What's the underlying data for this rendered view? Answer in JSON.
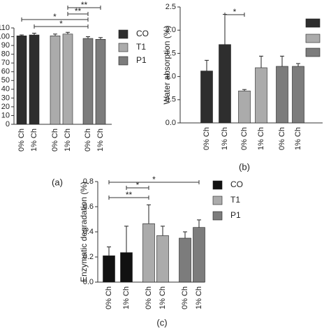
{
  "chart_data": [
    {
      "type": "bar",
      "label": "(a)",
      "categories": [
        "0% Ch",
        "1% Ch",
        "0% Ch",
        "1% Ch",
        "0% Ch",
        "1% Ch"
      ],
      "series": [
        {
          "name": "CO",
          "color": "#2e2e2e",
          "values": [
            101,
            102,
            null,
            null,
            null,
            null
          ],
          "errors": [
            1,
            2,
            null,
            null,
            null,
            null
          ]
        },
        {
          "name": "T1",
          "color": "#ababab",
          "values": [
            null,
            null,
            101,
            103,
            null,
            null
          ],
          "errors": [
            null,
            null,
            2,
            2,
            null,
            null
          ]
        },
        {
          "name": "P1",
          "color": "#7c7c7c",
          "values": [
            null,
            null,
            null,
            null,
            98,
            97
          ],
          "errors": [
            null,
            null,
            null,
            null,
            2,
            2
          ]
        }
      ],
      "ylim": [
        0,
        110
      ],
      "yticks": [
        0,
        10,
        20,
        30,
        40,
        50,
        60,
        70,
        80,
        90,
        100,
        110
      ],
      "annotations": [
        "**",
        "**",
        "*",
        "*"
      ]
    },
    {
      "type": "bar",
      "label": "(b)",
      "y_label": "Water absorption (%)",
      "categories": [
        "0% Ch",
        "1% Ch",
        "0% Ch",
        "1% Ch",
        "0% Ch",
        "1% Ch"
      ],
      "series": [
        {
          "color": "#2e2e2e",
          "values": [
            1.12,
            1.69,
            null,
            null,
            null,
            null
          ],
          "errors": [
            0.23,
            0.65,
            null,
            null,
            null,
            null
          ]
        },
        {
          "color": "#ababab",
          "values": [
            null,
            null,
            0.69,
            1.19,
            null,
            null
          ],
          "errors": [
            null,
            null,
            0.03,
            0.25,
            null,
            null
          ]
        },
        {
          "color": "#7c7c7c",
          "values": [
            null,
            null,
            null,
            null,
            1.22,
            1.22
          ],
          "errors": [
            null,
            null,
            null,
            null,
            0.22,
            0.06
          ]
        }
      ],
      "ylim": [
        0,
        2.5
      ],
      "yticks": [
        {
          "value": 0,
          "label": "0.0"
        },
        {
          "value": 0.5,
          "label": "0.5"
        },
        {
          "value": 1,
          "label": "1.0"
        },
        {
          "value": 1.5,
          "label": "1.5"
        },
        {
          "value": 2,
          "label": "2.0"
        },
        {
          "value": 2.5,
          "label": "2.5"
        }
      ],
      "annotations": [
        "*"
      ]
    },
    {
      "type": "bar",
      "label": "(c)",
      "y_label": "Enzymatic degradation (%)",
      "categories": [
        "0% Ch",
        "1% Ch",
        "0% Ch",
        "1% Ch",
        "0% Ch",
        "1% Ch"
      ],
      "series": [
        {
          "name": "CO",
          "color": "#111111",
          "values": [
            0.21,
            0.235,
            null,
            null,
            null,
            null
          ],
          "errors": [
            0.07,
            0.21,
            null,
            null,
            null,
            null
          ]
        },
        {
          "name": "T1",
          "color": "#ababab",
          "values": [
            null,
            null,
            0.465,
            0.37,
            null,
            null
          ],
          "errors": [
            null,
            null,
            0.15,
            0.075,
            null,
            null
          ]
        },
        {
          "name": "P1",
          "color": "#7c7c7c",
          "values": [
            null,
            null,
            null,
            null,
            0.35,
            0.435
          ],
          "errors": [
            null,
            null,
            null,
            null,
            0.05,
            0.06
          ]
        }
      ],
      "ylim": [
        0,
        0.8
      ],
      "yticks": [
        {
          "value": 0,
          "label": "0.0"
        },
        {
          "value": 0.2,
          "label": "0.2"
        },
        {
          "value": 0.4,
          "label": "0.4"
        },
        {
          "value": 0.6,
          "label": "0.6"
        },
        {
          "value": 0.8,
          "label": "0.8"
        }
      ],
      "annotations": [
        "*",
        "*",
        "**"
      ]
    }
  ]
}
